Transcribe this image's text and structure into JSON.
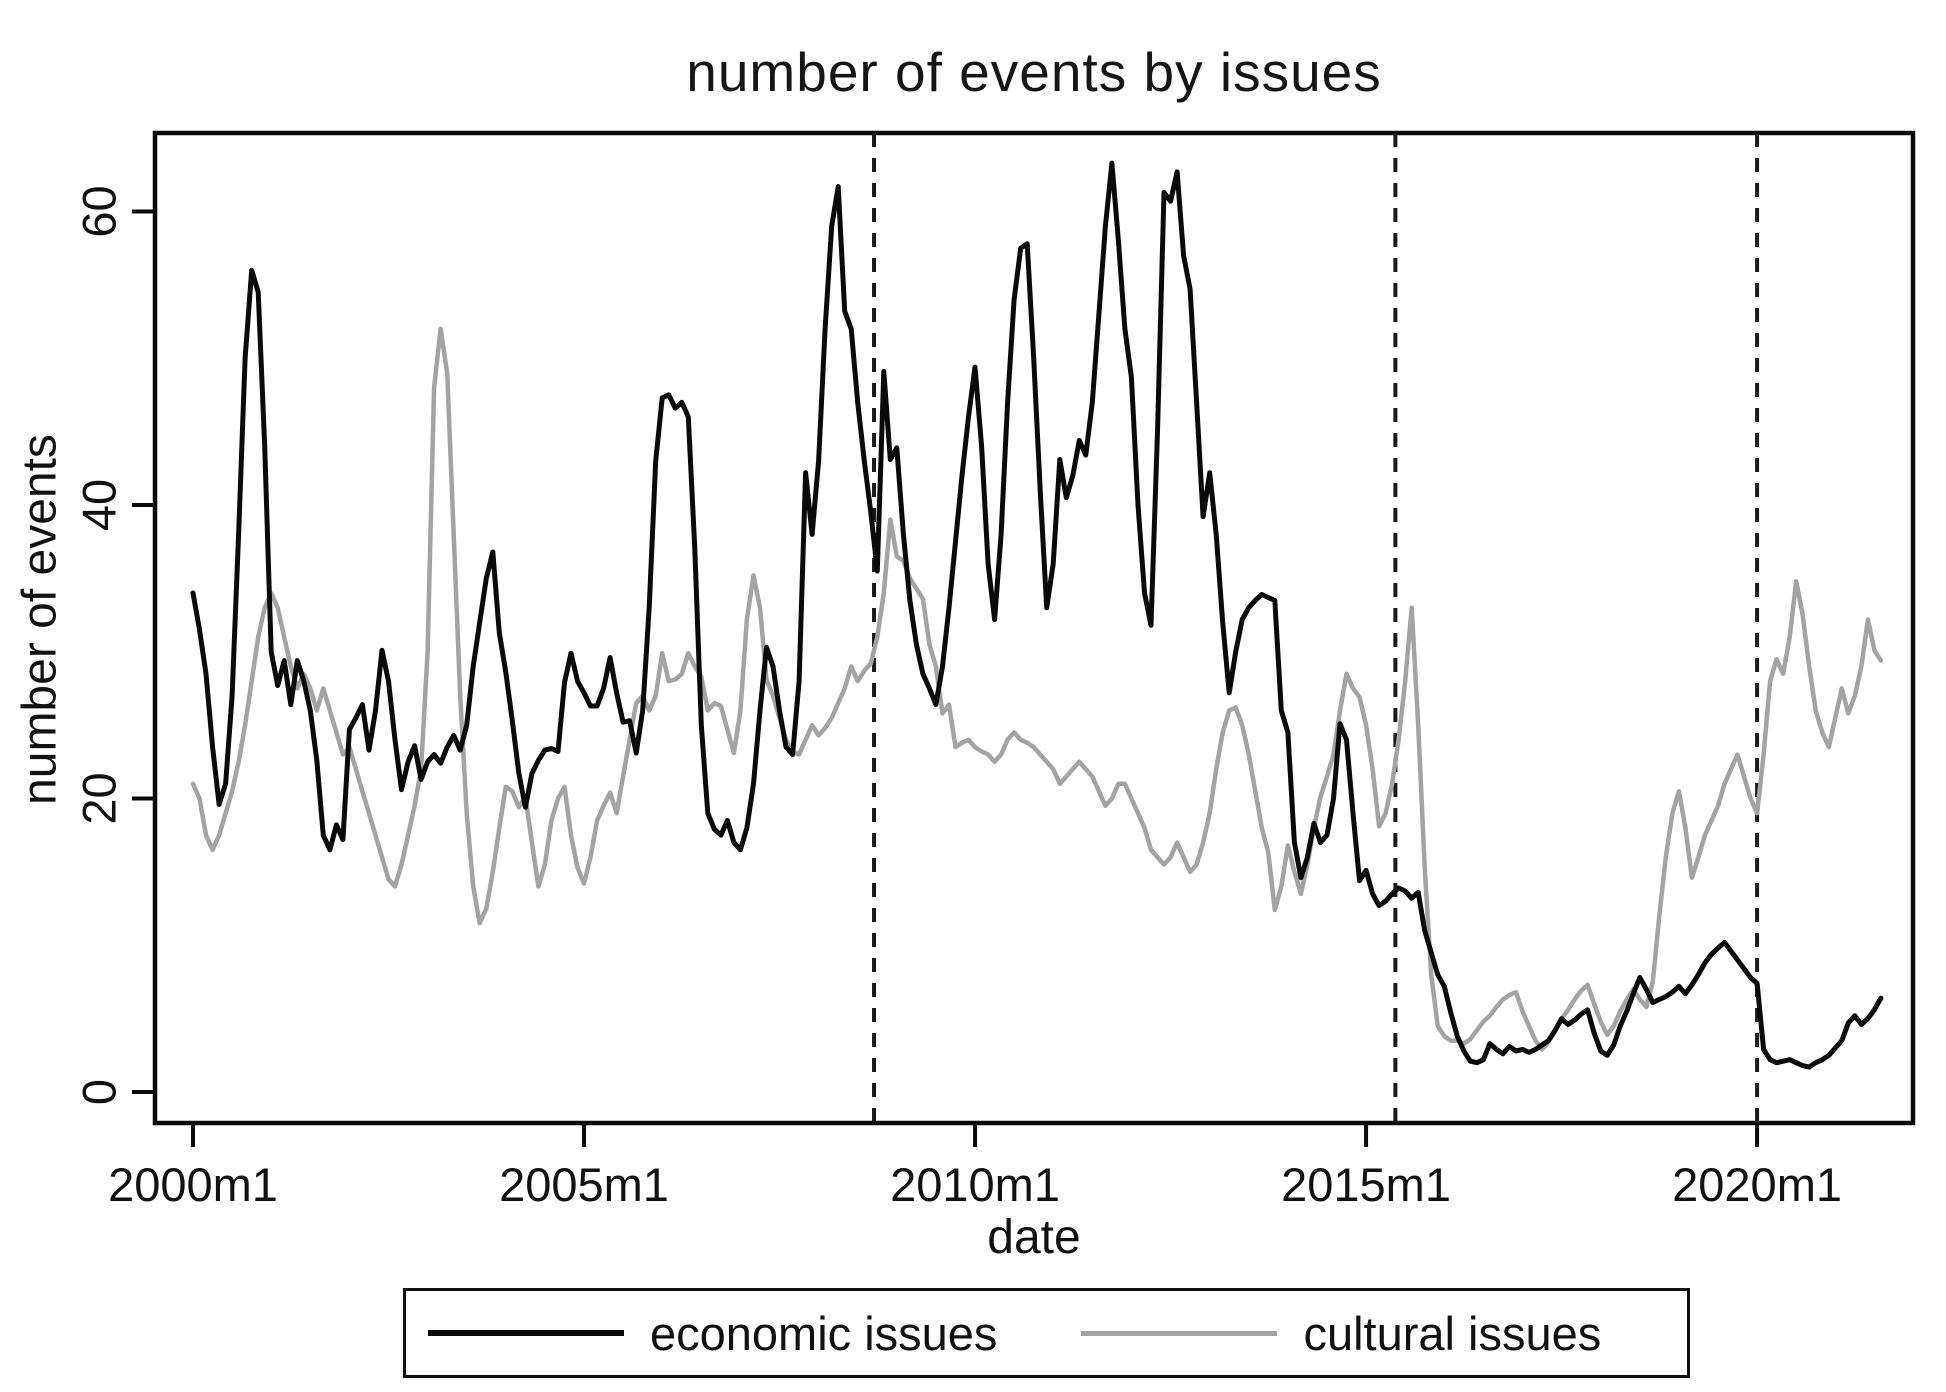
{
  "chart_data": {
    "type": "line",
    "title": "number of events by issues",
    "xlabel": "date",
    "ylabel": "number of events",
    "x_unit": "months since 2000m1",
    "x_range": [
      "2000m1",
      "2021m8"
    ],
    "ylim": [
      0,
      65
    ],
    "grid": false,
    "background_color": "#ffffff",
    "frame_color": "#0a0a0a",
    "x_axis": {
      "ticks": [
        {
          "month": 0,
          "label": "2000m1"
        },
        {
          "month": 60,
          "label": "2005m1"
        },
        {
          "month": 120,
          "label": "2010m1"
        },
        {
          "month": 180,
          "label": "2015m1"
        },
        {
          "month": 240,
          "label": "2020m1"
        }
      ]
    },
    "y_axis": {
      "ticks": [
        {
          "value": 0,
          "label": "0"
        },
        {
          "value": 20,
          "label": "20"
        },
        {
          "value": 40,
          "label": "40"
        },
        {
          "value": 60,
          "label": "60"
        }
      ]
    },
    "reference_lines": {
      "style": "dashed",
      "color": "#1a1a1a",
      "months": [
        104.5,
        184.5,
        240
      ]
    },
    "legend": {
      "position": "bottom",
      "entries": [
        "economic issues",
        "cultural issues"
      ]
    },
    "series": [
      {
        "name": "economic issues",
        "color": "#0a0a0a",
        "values": [
          34,
          31.5,
          28.5,
          23.5,
          19.6,
          21,
          27,
          38,
          50,
          56,
          54.5,
          44,
          30,
          27.7,
          29.4,
          26.4,
          29.4,
          28,
          26,
          22.6,
          17.5,
          16.5,
          18.2,
          17.2,
          24.7,
          25.5,
          26.4,
          23.3,
          26,
          30.1,
          28,
          24,
          20.6,
          22.5,
          23.6,
          21.3,
          22.5,
          23,
          22.4,
          23.5,
          24.3,
          23.3,
          25,
          29,
          32,
          35,
          36.8,
          31.3,
          28.6,
          25.3,
          21.7,
          19.4,
          21.7,
          22.6,
          23.3,
          23.4,
          23.2,
          27.9,
          29.9,
          28,
          27.2,
          26.3,
          26.3,
          27.5,
          29.6,
          27.2,
          25.2,
          25.3,
          23.1,
          26,
          33,
          43,
          47.3,
          47.5,
          46.6,
          47,
          46,
          37,
          25,
          19,
          17.9,
          17.5,
          18.5,
          17,
          16.5,
          18,
          21,
          26,
          30.3,
          29,
          26,
          23.5,
          23,
          28,
          42.2,
          38,
          43,
          52,
          59,
          61.7,
          53.2,
          52,
          47,
          43,
          39.5,
          35.5,
          49.1,
          43.1,
          43.9,
          38,
          33.5,
          30.5,
          28.5,
          27.5,
          26.4,
          29,
          33,
          37.5,
          42,
          46,
          49.4,
          44,
          36,
          32.2,
          38,
          47,
          54,
          57.5,
          57.8,
          50,
          41,
          33,
          36,
          43.1,
          40.5,
          42,
          44.4,
          43.4,
          47,
          53,
          59,
          63.3,
          58,
          52,
          48.7,
          40,
          34,
          31.8,
          45,
          61.3,
          60.7,
          62.7,
          57,
          54.7,
          47,
          39.2,
          42.2,
          38,
          32,
          27.2,
          30,
          32.2,
          33,
          33.5,
          33.9,
          33.7,
          33.5,
          26,
          24.5,
          17,
          14.6,
          16,
          18.3,
          17,
          17.5,
          20,
          25.1,
          24,
          19,
          14.4,
          15.1,
          13.5,
          12.7,
          13,
          13.5,
          13.9,
          13.7,
          13.2,
          13.6,
          11,
          9.5,
          8,
          7.2,
          5.4,
          3.8,
          2.8,
          2.1,
          2.0,
          2.2,
          3.3,
          2.9,
          2.6,
          3.1,
          2.8,
          2.9,
          2.7,
          2.9,
          3.2,
          3.5,
          4.2,
          5.0,
          4.6,
          4.9,
          5.3,
          5.6,
          4,
          2.8,
          2.5,
          3.2,
          4.5,
          5.5,
          6.7,
          7.8,
          7,
          6.1,
          6.3,
          6.5,
          6.8,
          7.2,
          6.7,
          7.3,
          8,
          8.8,
          9.4,
          9.8,
          10.2,
          9.6,
          9,
          8.4,
          7.8,
          7.4,
          2.9,
          2.2,
          2.0,
          2.1,
          2.2,
          2.0,
          1.8,
          1.7,
          2.0,
          2.2,
          2.5,
          3.0,
          3.5,
          4.7,
          5.2,
          4.6,
          5.0,
          5.6,
          6.4
        ]
      },
      {
        "name": "cultural issues",
        "color": "#a3a3a3",
        "values": [
          21,
          20,
          17.5,
          16.5,
          17.5,
          19,
          20.5,
          22.5,
          25,
          28,
          31,
          33,
          34,
          33,
          31,
          29,
          27.5,
          28.5,
          27.5,
          26,
          27.5,
          26,
          24.5,
          23,
          23.5,
          22,
          20.5,
          19,
          17.5,
          16,
          14.5,
          14,
          15.5,
          17.5,
          19.5,
          22,
          30,
          48,
          52,
          49,
          38,
          27,
          19,
          14,
          11.5,
          12.5,
          15,
          18,
          20.8,
          20.5,
          19.4,
          20.1,
          17,
          14,
          15.5,
          18.5,
          20,
          20.8,
          17.5,
          15.3,
          14.2,
          16,
          18.5,
          19.5,
          20.4,
          19,
          21.5,
          24,
          26.5,
          27,
          26,
          27,
          29.9,
          28,
          28.1,
          28.5,
          29.9,
          29,
          28.3,
          26,
          26.5,
          26.3,
          24.7,
          23.1,
          26,
          32.2,
          35.2,
          33,
          28.1,
          27,
          25.5,
          24,
          23.2,
          23,
          24,
          25,
          24.3,
          24.8,
          25.5,
          26.5,
          27.5,
          29,
          28,
          28.7,
          29.2,
          31,
          34,
          39,
          36.5,
          36.2,
          35,
          34.3,
          33.6,
          30.5,
          29,
          25.8,
          26.4,
          23.5,
          23.8,
          24,
          23.5,
          23.2,
          23,
          22.5,
          23,
          24,
          24.5,
          24,
          23.8,
          23.5,
          23,
          22.5,
          22,
          21,
          21.5,
          22,
          22.5,
          22,
          21.5,
          20.5,
          19.5,
          20,
          21,
          21,
          20,
          19,
          18,
          16.5,
          16,
          15.5,
          16,
          17,
          16,
          15,
          15.5,
          17,
          19,
          22,
          24.5,
          26,
          26.2,
          25,
          23,
          20.5,
          18,
          16.3,
          12.4,
          14,
          16.8,
          15,
          13.5,
          15.5,
          18,
          20.1,
          21.5,
          23,
          26,
          28.5,
          27.5,
          26.9,
          25,
          22,
          18.1,
          19,
          21,
          24,
          28,
          33,
          25,
          15.3,
          8,
          4.5,
          3.8,
          3.5,
          3.5,
          3.3,
          3.6,
          4.2,
          4.8,
          5.2,
          5.8,
          6.3,
          6.6,
          6.8,
          5.5,
          4.5,
          3.5,
          2.9,
          3.4,
          4.2,
          5.0,
          5.6,
          6.3,
          6.9,
          7.3,
          6,
          4.8,
          3.9,
          4.5,
          5.5,
          6.3,
          7.0,
          6.3,
          5.8,
          7.5,
          12,
          16,
          19,
          20.5,
          18,
          14.6,
          16,
          17.5,
          18.5,
          19.5,
          21,
          22,
          23,
          21.5,
          20,
          19,
          23,
          28,
          29.5,
          28.5,
          31,
          34.8,
          32.5,
          29,
          26,
          24.5,
          23.5,
          25.5,
          27.5,
          25.8,
          27,
          29,
          32.2,
          30.1,
          29.4
        ]
      }
    ]
  }
}
